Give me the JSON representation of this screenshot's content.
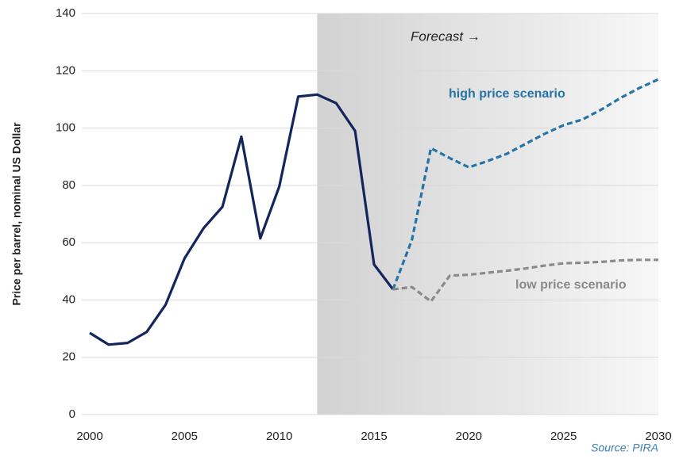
{
  "chart_data": {
    "type": "line",
    "y_label": "Price per barrel, nominal US Dollar",
    "xlim": [
      2000,
      2030
    ],
    "xticks": [
      2000,
      2005,
      2010,
      2015,
      2020,
      2025,
      2030
    ],
    "ylim": [
      0,
      140
    ],
    "yticks": [
      0,
      20,
      40,
      60,
      80,
      100,
      120,
      140
    ],
    "grid": true,
    "shaded_region": [
      2012,
      2030
    ],
    "series": [
      {
        "color": "#13255c",
        "dashed": false,
        "x": [
          2000,
          2001,
          2002,
          2003,
          2004,
          2005,
          2006,
          2007,
          2008,
          2009,
          2010,
          2011,
          2012,
          2013,
          2014,
          2015,
          2016
        ],
        "values": [
          28.5,
          24.4,
          25,
          28.8,
          38.3,
          54.5,
          65,
          72.5,
          97,
          61.5,
          79.6,
          111,
          111.7,
          108.7,
          99,
          52.4,
          43.7
        ]
      },
      {
        "name": "high price scenario",
        "color": "#2474a8",
        "dashed": true,
        "x": [
          2016,
          2017,
          2018,
          2019,
          2020,
          2021,
          2022,
          2023,
          2024,
          2025,
          2026,
          2027,
          2028,
          2029,
          2030
        ],
        "values": [
          43.7,
          61,
          93,
          89.5,
          86.3,
          88.5,
          91,
          94.5,
          98,
          101,
          103,
          106.5,
          110.5,
          114,
          117
        ]
      },
      {
        "name": "low price scenario",
        "color": "#8a8a8a",
        "dashed": true,
        "x": [
          2016,
          2017,
          2018,
          2019,
          2020,
          2021,
          2022,
          2023,
          2024,
          2025,
          2026,
          2027,
          2028,
          2029,
          2030
        ],
        "values": [
          43.7,
          44.5,
          39.5,
          48.5,
          48.8,
          49.5,
          50.2,
          51,
          52,
          52.8,
          53,
          53.3,
          53.8,
          54,
          54
        ]
      }
    ],
    "annotations": [
      "Forecast →"
    ],
    "source": "Source: PIRA"
  }
}
